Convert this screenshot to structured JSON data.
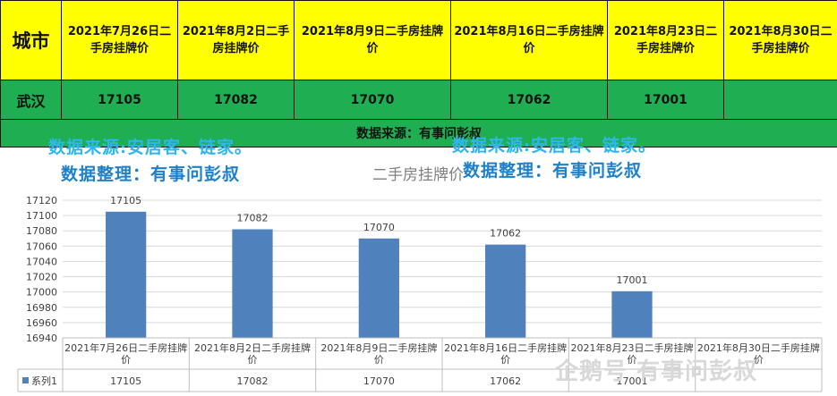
{
  "table": {
    "city_header": "城市",
    "date_headers": [
      "2021年7月26日二手房挂牌价",
      "2021年8月2日二手房挂牌价",
      "2021年8月9日二手房挂牌价",
      "2021年8月16日二手房挂牌价",
      "2021年8月23日二手房挂牌价",
      "2021年8月30日二手房挂牌价"
    ],
    "city": "武汉",
    "prices": [
      "17105",
      "17082",
      "17070",
      "17062",
      "17001",
      ""
    ],
    "source_note": "数据来源：有事问彭叔"
  },
  "watermarks": {
    "source_left": "数据来源:安居客、链家。",
    "source_right": "数据来源:安居客、链家。",
    "arranged_left": "数据整理：有事问彭叔",
    "arranged_right": "数据整理：有事问彭叔",
    "brand": "企鹅号 有事问彭叔"
  },
  "chart_data": {
    "type": "bar",
    "title": "二手房挂牌价",
    "categories": [
      "2021年7月26日二手房挂牌价",
      "2021年8月2日二手房挂牌价",
      "2021年8月9日二手房挂牌价",
      "2021年8月16日二手房挂牌价",
      "2021年8月23日二手房挂牌价",
      "2021年8月30日二手房挂牌价"
    ],
    "series": [
      {
        "name": "系列1",
        "values": [
          17105,
          17082,
          17070,
          17062,
          17001,
          null
        ]
      }
    ],
    "ylim": [
      16940,
      17120
    ],
    "yticks": [
      16940,
      16960,
      16980,
      17000,
      17020,
      17040,
      17060,
      17080,
      17100,
      17120
    ],
    "gridlines": true,
    "data_table": true,
    "bar_color": "#4f81bd",
    "grid_color": "#d9d9d9"
  }
}
